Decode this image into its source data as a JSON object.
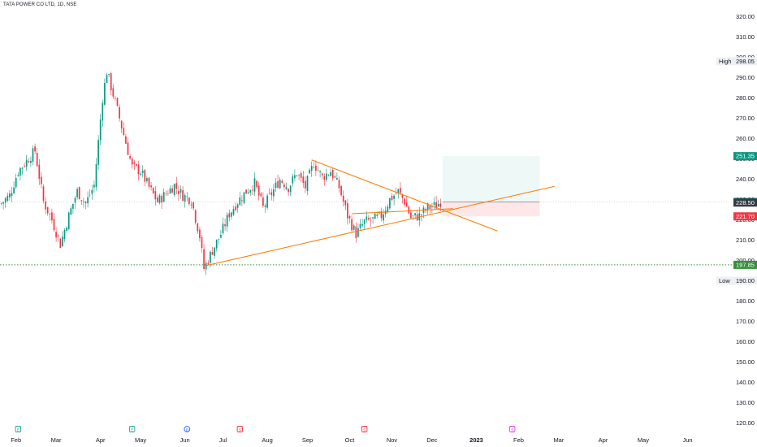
{
  "header": {
    "symbol_title": "TATA POWER CO LTD, 1D, NSE"
  },
  "chart_data": {
    "type": "candlestick",
    "ylim": [
      115,
      325
    ],
    "y_ticks": [
      120,
      130,
      140,
      150,
      160,
      170,
      180,
      190,
      200,
      210,
      220,
      230,
      240,
      250,
      260,
      270,
      280,
      290,
      300,
      310,
      320
    ],
    "x_ticks": [
      {
        "label": "Feb",
        "i": 7
      },
      {
        "label": "Mar",
        "i": 26
      },
      {
        "label": "Apr",
        "i": 47
      },
      {
        "label": "May",
        "i": 66
      },
      {
        "label": "Jun",
        "i": 87
      },
      {
        "label": "Jul",
        "i": 105
      },
      {
        "label": "Aug",
        "i": 126
      },
      {
        "label": "Sep",
        "i": 145
      },
      {
        "label": "Oct",
        "i": 165
      },
      {
        "label": "Nov",
        "i": 185
      },
      {
        "label": "Dec",
        "i": 204
      },
      {
        "label": "2023",
        "i": 225
      },
      {
        "label": "Feb",
        "i": 245
      },
      {
        "label": "Mar",
        "i": 264
      },
      {
        "label": "Apr",
        "i": 285
      },
      {
        "label": "May",
        "i": 304
      },
      {
        "label": "Jun",
        "i": 325
      }
    ],
    "anchors": [
      [
        0,
        228
      ],
      [
        4,
        232
      ],
      [
        8,
        244
      ],
      [
        12,
        249
      ],
      [
        16,
        254
      ],
      [
        20,
        229
      ],
      [
        24,
        220
      ],
      [
        28,
        208
      ],
      [
        32,
        222
      ],
      [
        36,
        234
      ],
      [
        40,
        228
      ],
      [
        44,
        237
      ],
      [
        48,
        280
      ],
      [
        50,
        293
      ],
      [
        54,
        278
      ],
      [
        58,
        262
      ],
      [
        62,
        246
      ],
      [
        66,
        244
      ],
      [
        70,
        236
      ],
      [
        74,
        229
      ],
      [
        78,
        233
      ],
      [
        82,
        237
      ],
      [
        86,
        232
      ],
      [
        90,
        230
      ],
      [
        94,
        212
      ],
      [
        96,
        196
      ],
      [
        100,
        205
      ],
      [
        104,
        213
      ],
      [
        108,
        223
      ],
      [
        112,
        229
      ],
      [
        116,
        234
      ],
      [
        120,
        238
      ],
      [
        124,
        226
      ],
      [
        128,
        233
      ],
      [
        132,
        240
      ],
      [
        136,
        236
      ],
      [
        140,
        243
      ],
      [
        144,
        236
      ],
      [
        148,
        248
      ],
      [
        152,
        241
      ],
      [
        156,
        244
      ],
      [
        160,
        236
      ],
      [
        164,
        222
      ],
      [
        168,
        213
      ],
      [
        172,
        219
      ],
      [
        176,
        220
      ],
      [
        180,
        222
      ],
      [
        184,
        230
      ],
      [
        188,
        234
      ],
      [
        191,
        229
      ],
      [
        194,
        221
      ],
      [
        198,
        222
      ],
      [
        202,
        226
      ],
      [
        206,
        227
      ],
      [
        208,
        229
      ]
    ],
    "markers": [
      {
        "i": 8,
        "code": "E",
        "color": "#26a69a"
      },
      {
        "i": 62,
        "code": "E",
        "color": "#26a69a"
      },
      {
        "i": 88,
        "code": "D",
        "color": "#2962ff"
      },
      {
        "i": 113,
        "code": "S",
        "color": "#f23645"
      },
      {
        "i": 172,
        "code": "S",
        "color": "#f23645"
      },
      {
        "i": 242,
        "code": "S",
        "color": "#e040fb"
      }
    ],
    "trendlines": [
      {
        "from": [
          97,
          197.5
        ],
        "to": [
          262,
          236.5
        ],
        "color": "#f57c00"
      },
      {
        "from": [
          147,
          249.5
        ],
        "to": [
          235,
          214.5
        ],
        "color": "#f57c00"
      },
      {
        "from": [
          166,
          223
        ],
        "to": [
          214,
          225.5
        ],
        "color": "#f57c00"
      }
    ],
    "position": {
      "entry": 228.8,
      "target": 251.35,
      "stop": 221.7,
      "start_i": 209,
      "end_i": 255,
      "profit_color": "#26a69a",
      "loss_color": "#f23645"
    },
    "support_line": {
      "value": 197.85,
      "color": "#388e3c"
    },
    "price_tags": [
      {
        "value": 251.35,
        "label": "251.35",
        "color": "#089981"
      },
      {
        "value": 228.8,
        "label": "228.80",
        "color": "#089981"
      },
      {
        "value": 228.5,
        "label": "228.50",
        "color": "#363a45"
      },
      {
        "value": 221.7,
        "label": "221.70",
        "color": "#f23645"
      },
      {
        "value": 197.85,
        "label": "197.85",
        "color": "#388e3c"
      }
    ],
    "high_label": {
      "name": "High",
      "value": 298.05,
      "label": "298.05"
    },
    "low_label": {
      "name": "Low",
      "value": 190.0,
      "label": "190.00"
    },
    "colors": {
      "up": "#089981",
      "down": "#f23645"
    }
  }
}
